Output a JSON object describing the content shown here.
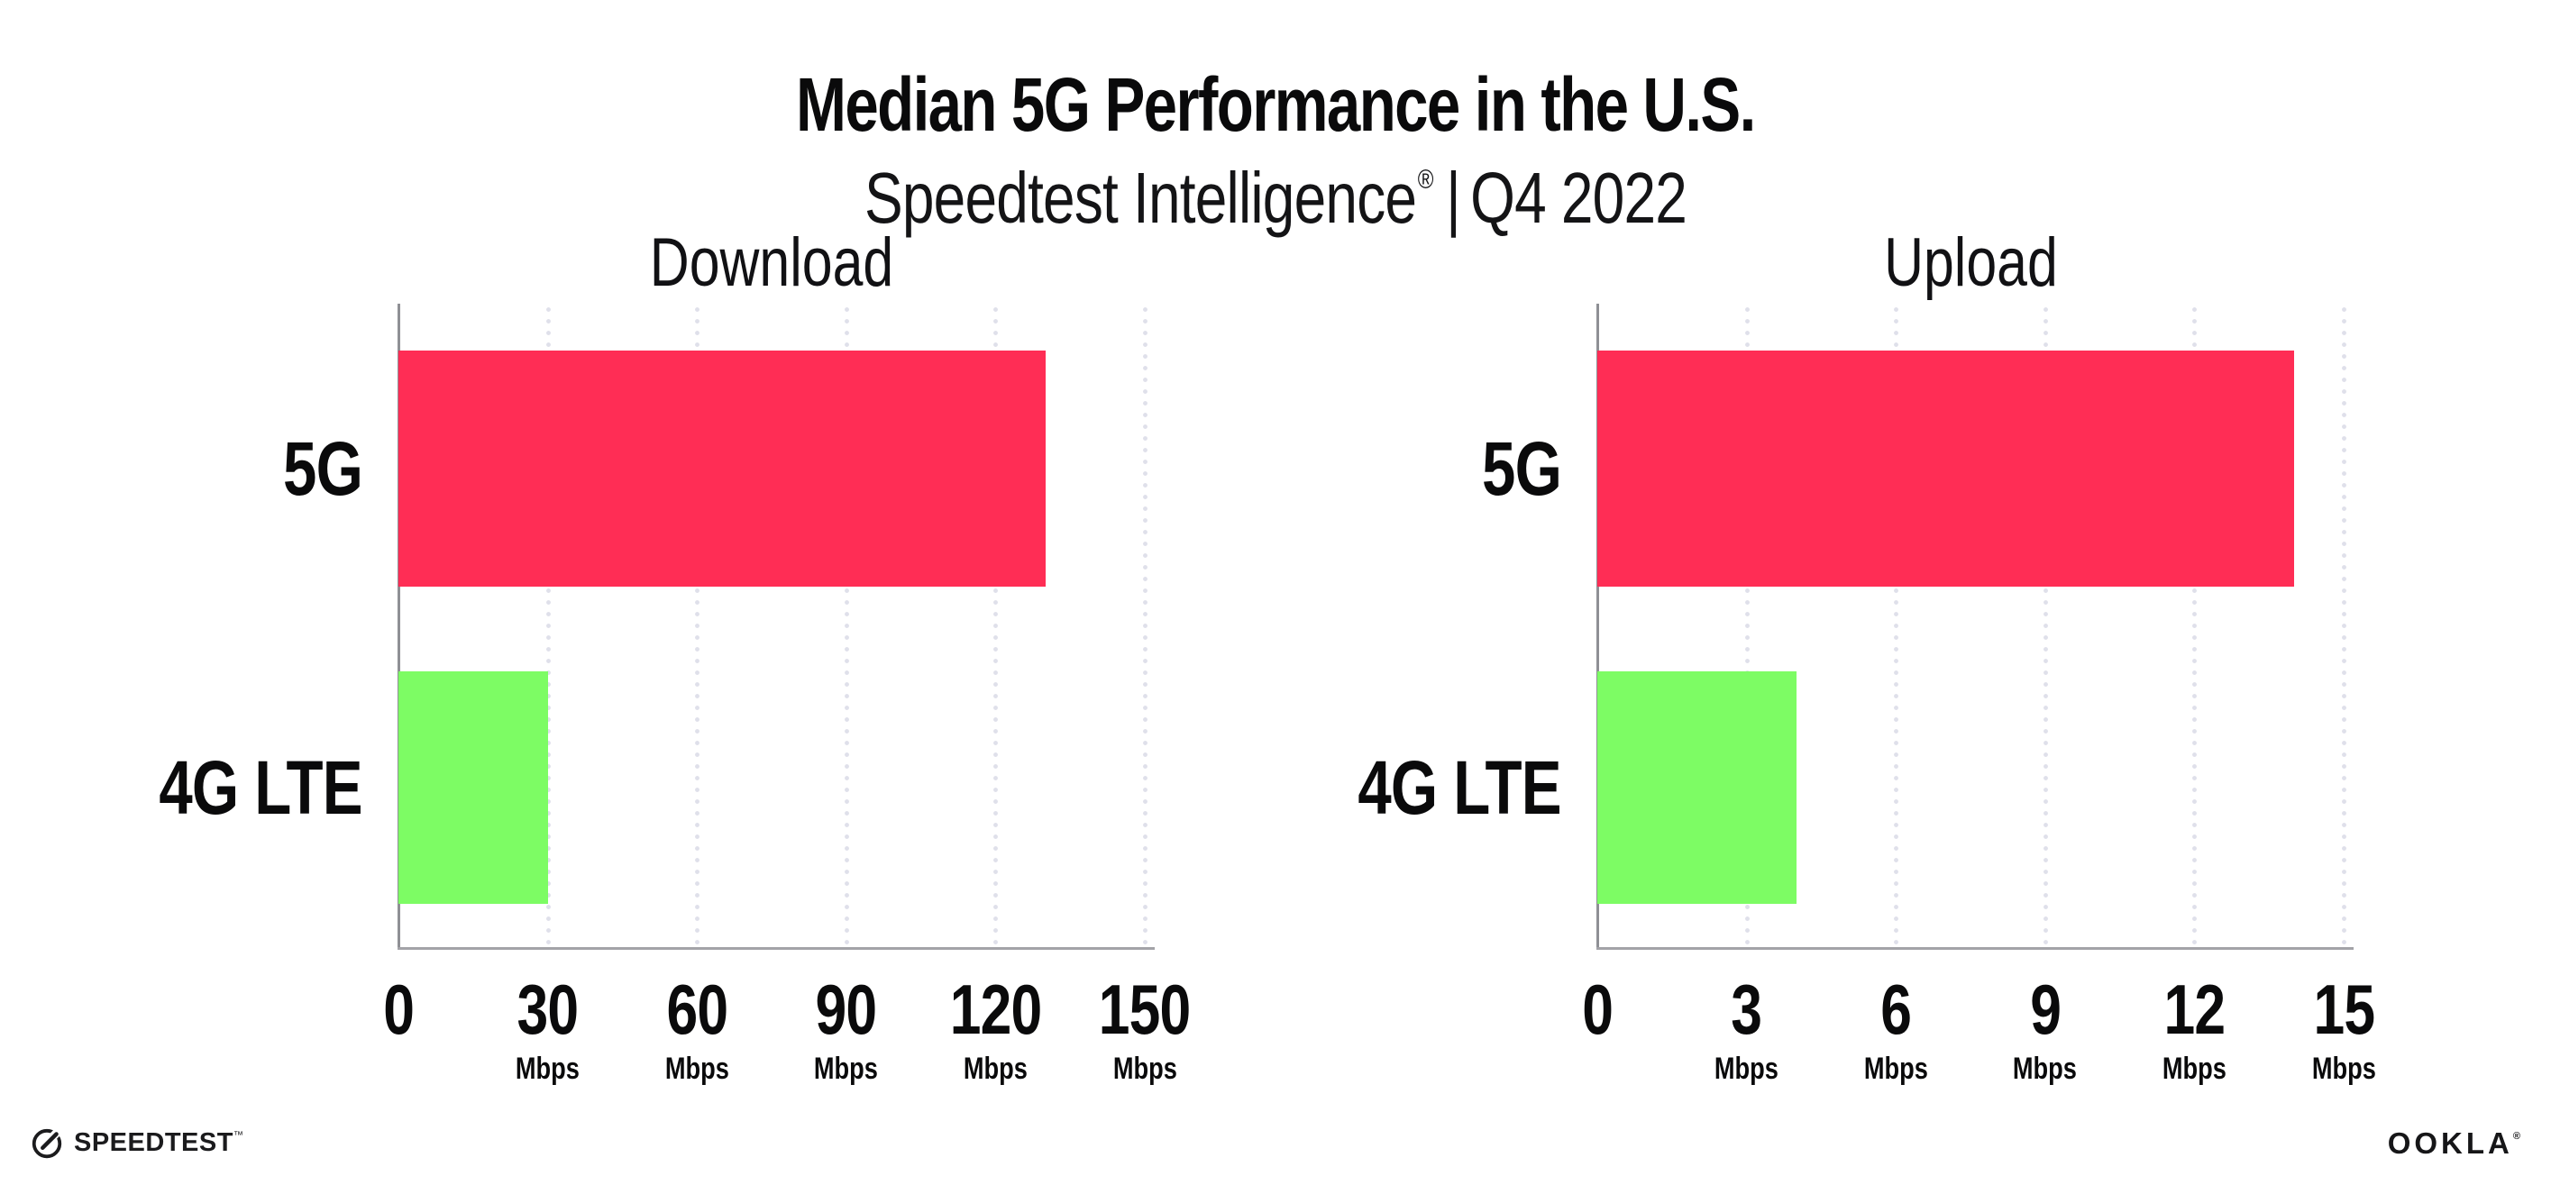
{
  "page": {
    "title": "Median 5G Performance in the U.S.",
    "subtitle": {
      "brand": "Speedtest Intelligence",
      "reg": "®",
      "pipe": "|",
      "period": "Q4 2022"
    },
    "background": "#ffffff"
  },
  "colors": {
    "bar_5g": "#ff2d55",
    "bar_4g_lte": "#7dfc64",
    "gridline": "#dfe0ea",
    "axis_y": "#8f9095",
    "axis_x": "#a3a3a8",
    "text": "#0a0a0b"
  },
  "chart_data": [
    {
      "type": "bar",
      "orientation": "horizontal",
      "title": "Download",
      "categories": [
        "5G",
        "4G LTE"
      ],
      "values": [
        130,
        30
      ],
      "unit": "Mbps",
      "xlim": [
        0,
        150
      ],
      "xticks": [
        0,
        30,
        60,
        90,
        120,
        150
      ],
      "bar_colors": [
        "#ff2d55",
        "#7dfc64"
      ],
      "grid": "dotted-vertical",
      "legend": "none"
    },
    {
      "type": "bar",
      "orientation": "horizontal",
      "title": "Upload",
      "categories": [
        "5G",
        "4G LTE"
      ],
      "values": [
        14,
        4
      ],
      "unit": "Mbps",
      "xlim": [
        0,
        15
      ],
      "xticks": [
        0,
        3,
        6,
        9,
        12,
        15
      ],
      "bar_colors": [
        "#ff2d55",
        "#7dfc64"
      ],
      "grid": "dotted-vertical",
      "legend": "none"
    }
  ],
  "footer": {
    "speedtest_label": "SPEEDTEST",
    "speedtest_tm": "™",
    "ookla_label": "OOKLA",
    "ookla_reg": "®"
  }
}
